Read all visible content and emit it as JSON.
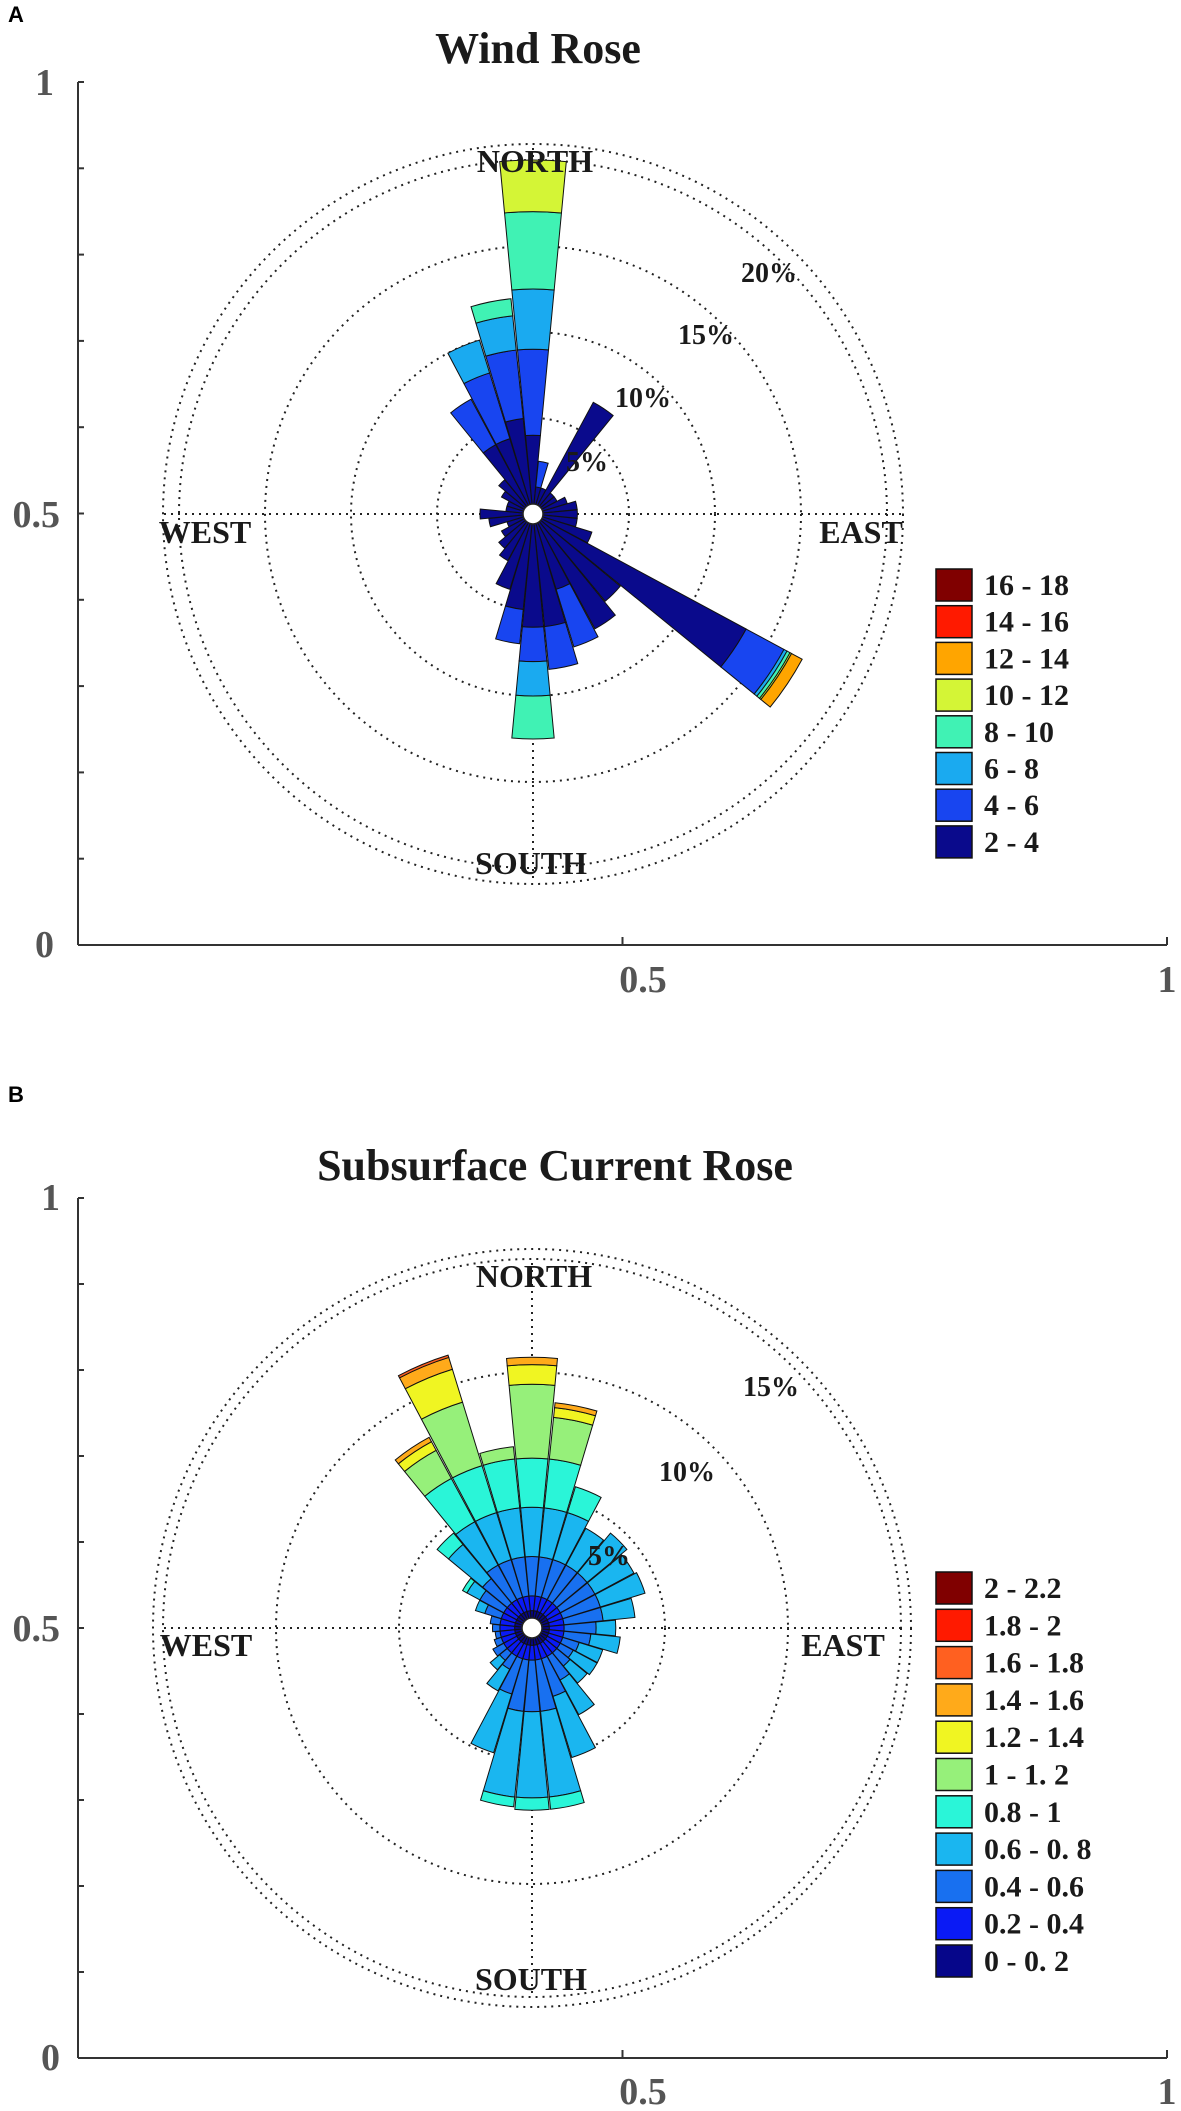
{
  "chart_data": [
    {
      "panel": "A",
      "type": "polar-bar",
      "title": "Wind Rose",
      "xticks": [
        "0.5",
        "1"
      ],
      "yticks": [
        "1",
        "0.5",
        "0"
      ],
      "compass": [
        "NORTH",
        "EAST",
        "SOUTH",
        "WEST"
      ],
      "rings": [
        5,
        10,
        15,
        20
      ],
      "ring_labels": [
        "5%",
        "10%",
        "15%",
        "20%"
      ],
      "legend_title": "",
      "legend": [
        {
          "label": "16 - 18",
          "color": "#800000"
        },
        {
          "label": "14 - 16",
          "color": "#ff1a00"
        },
        {
          "label": "12 - 14",
          "color": "#ffa500"
        },
        {
          "label": "10 - 12",
          "color": "#d4f536"
        },
        {
          "label": "8 - 10",
          "color": "#40f2b4"
        },
        {
          "label": "6 - 8",
          "color": "#1aaaf0"
        },
        {
          "label": "4 - 6",
          "color": "#1845f0"
        },
        {
          "label": "2 - 4",
          "color": "#0a0a8c"
        }
      ],
      "directions": [
        {
          "dir": 0,
          "cumulative": [
            4,
            9,
            12.5,
            17,
            20
          ]
        },
        {
          "dir": 11.25,
          "cumulative": [
            1,
            2.5
          ]
        },
        {
          "dir": 22.5,
          "cumulative": [
            1
          ]
        },
        {
          "dir": 33.75,
          "cumulative": [
            6.8
          ]
        },
        {
          "dir": 45,
          "cumulative": [
            1
          ]
        },
        {
          "dir": 56.25,
          "cumulative": [
            1
          ]
        },
        {
          "dir": 67.5,
          "cumulative": [
            1.5
          ]
        },
        {
          "dir": 78.75,
          "cumulative": [
            2
          ]
        },
        {
          "dir": 90,
          "cumulative": [
            2
          ]
        },
        {
          "dir": 101.25,
          "cumulative": [
            2
          ]
        },
        {
          "dir": 112.5,
          "cumulative": [
            3
          ]
        },
        {
          "dir": 123.75,
          "cumulative": [
            13.5,
            16,
            16.2,
            16.4,
            16.5,
            17.2
          ]
        },
        {
          "dir": 135,
          "cumulative": [
            6
          ]
        },
        {
          "dir": 146.25,
          "cumulative": [
            7
          ]
        },
        {
          "dir": 157.5,
          "cumulative": [
            4,
            7.5
          ]
        },
        {
          "dir": 168.75,
          "cumulative": [
            6,
            8.5
          ]
        },
        {
          "dir": 180,
          "cumulative": [
            6,
            8,
            10,
            12.5
          ]
        },
        {
          "dir": 191.25,
          "cumulative": [
            5,
            7
          ]
        },
        {
          "dir": 202.5,
          "cumulative": [
            4
          ]
        },
        {
          "dir": 213.75,
          "cumulative": [
            2.5
          ]
        },
        {
          "dir": 225,
          "cumulative": [
            2
          ]
        },
        {
          "dir": 236.25,
          "cumulative": [
            1.5
          ]
        },
        {
          "dir": 247.5,
          "cumulative": [
            1
          ]
        },
        {
          "dir": 258.75,
          "cumulative": [
            2
          ]
        },
        {
          "dir": 270,
          "cumulative": [
            2.5
          ]
        },
        {
          "dir": 281.25,
          "cumulative": [
            1
          ]
        },
        {
          "dir": 292.5,
          "cumulative": [
            1
          ]
        },
        {
          "dir": 303.75,
          "cumulative": [
            1.5
          ]
        },
        {
          "dir": 315,
          "cumulative": [
            2
          ]
        },
        {
          "dir": 326.25,
          "cumulative": [
            4,
            7
          ]
        },
        {
          "dir": 337.5,
          "cumulative": [
            4,
            8,
            10
          ]
        },
        {
          "dir": 348.75,
          "cumulative": [
            5,
            9,
            11,
            12
          ]
        }
      ]
    },
    {
      "panel": "B",
      "type": "polar-bar",
      "title": "Subsurface Current Rose",
      "xticks": [
        "0.5",
        "1"
      ],
      "yticks": [
        "1",
        "0.5",
        "0"
      ],
      "compass": [
        "NORTH",
        "EAST",
        "SOUTH",
        "WEST"
      ],
      "rings": [
        5,
        10,
        15
      ],
      "ring_labels": [
        "5%",
        "10%",
        "15%"
      ],
      "legend_title": "",
      "legend": [
        {
          "label": "2 - 2.2",
          "color": "#800000"
        },
        {
          "label": "1.8 - 2",
          "color": "#ff1a00"
        },
        {
          "label": "1.6 - 1.8",
          "color": "#ff6020"
        },
        {
          "label": "1.4 - 1.6",
          "color": "#ffaa1a"
        },
        {
          "label": "1.2 - 1.4",
          "color": "#f0f522"
        },
        {
          "label": "1 - 1. 2",
          "color": "#96f07a"
        },
        {
          "label": "0.8 - 1",
          "color": "#2af5d8"
        },
        {
          "label": "0.6 - 0. 8",
          "color": "#1ab6f0"
        },
        {
          "label": "0.4 - 0.6",
          "color": "#1870f0"
        },
        {
          "label": "0.2 - 0.4",
          "color": "#0a1af5"
        },
        {
          "label": "0 - 0. 2",
          "color": "#06068a"
        }
      ],
      "directions": [
        {
          "dir": 0,
          "cumulative": [
            0.3,
            0.9,
            2.5,
            4.5,
            6.5,
            9.5,
            10.3,
            10.6
          ]
        },
        {
          "dir": 11.25,
          "cumulative": [
            0.3,
            0.9,
            2.5,
            4.5,
            6.5,
            8.2,
            8.6,
            8.8
          ]
        },
        {
          "dir": 22.5,
          "cumulative": [
            0.3,
            0.9,
            2.5,
            4.5,
            5.6
          ]
        },
        {
          "dir": 33.75,
          "cumulative": [
            0.3,
            0.9,
            2.5,
            4.2
          ]
        },
        {
          "dir": 45,
          "cumulative": [
            0.3,
            0.9,
            2.5,
            4.6
          ]
        },
        {
          "dir": 56.25,
          "cumulative": [
            0.3,
            0.9,
            2.5,
            4.3
          ]
        },
        {
          "dir": 67.5,
          "cumulative": [
            0.3,
            0.9,
            2.5,
            4.4
          ]
        },
        {
          "dir": 78.75,
          "cumulative": [
            0.3,
            0.9,
            2.5,
            3.8
          ]
        },
        {
          "dir": 90,
          "cumulative": [
            0.3,
            0.9,
            2.2,
            3.0
          ]
        },
        {
          "dir": 101.25,
          "cumulative": [
            0.3,
            0.9,
            2.0,
            3.2
          ]
        },
        {
          "dir": 112.5,
          "cumulative": [
            0.3,
            0.9,
            1.6,
            2.6
          ]
        },
        {
          "dir": 123.75,
          "cumulative": [
            0.3,
            0.9,
            1.5,
            2.6
          ]
        },
        {
          "dir": 135,
          "cumulative": [
            0.3,
            0.9,
            1.6,
            2.5
          ]
        },
        {
          "dir": 146.25,
          "cumulative": [
            0.3,
            0.9,
            2.0,
            3.6
          ]
        },
        {
          "dir": 157.5,
          "cumulative": [
            0.3,
            0.9,
            2.5,
            5.1
          ]
        },
        {
          "dir": 168.75,
          "cumulative": [
            0.3,
            0.9,
            3.0,
            6.5,
            7.0
          ]
        },
        {
          "dir": 180,
          "cumulative": [
            0.3,
            0.9,
            3.0,
            6.5,
            7.0
          ]
        },
        {
          "dir": 191.25,
          "cumulative": [
            0.3,
            0.9,
            3.0,
            6.5,
            6.9
          ]
        },
        {
          "dir": 202.5,
          "cumulative": [
            0.3,
            0.9,
            2.4,
            4.9
          ]
        },
        {
          "dir": 213.75,
          "cumulative": [
            0.3,
            0.9,
            1.5,
            2.5
          ]
        },
        {
          "dir": 225,
          "cumulative": [
            0.3,
            0.9,
            1.3,
            1.8
          ]
        },
        {
          "dir": 236.25,
          "cumulative": [
            0.3,
            0.9,
            1.4
          ]
        },
        {
          "dir": 247.5,
          "cumulative": [
            0.3,
            0.9,
            1.2
          ]
        },
        {
          "dir": 258.75,
          "cumulative": [
            0.3,
            0.9,
            1.1
          ]
        },
        {
          "dir": 270,
          "cumulative": [
            0.3,
            0.9,
            1.2
          ]
        },
        {
          "dir": 281.25,
          "cumulative": [
            0.3,
            0.9,
            1.3
          ]
        },
        {
          "dir": 292.5,
          "cumulative": [
            0.3,
            0.9,
            1.6,
            2.0
          ]
        },
        {
          "dir": 303.75,
          "cumulative": [
            0.3,
            0.9,
            2.0,
            2.6,
            2.8
          ]
        },
        {
          "dir": 315,
          "cumulative": [
            0.3,
            0.9,
            2.2,
            4.0,
            4.6
          ]
        },
        {
          "dir": 326.25,
          "cumulative": [
            0.3,
            0.9,
            2.5,
            4.5,
            6.5,
            7.8,
            8.2,
            8.4
          ]
        },
        {
          "dir": 337.5,
          "cumulative": [
            0.3,
            0.9,
            2.5,
            4.5,
            6.5,
            9.2,
            10.6,
            11.1,
            11.2
          ]
        },
        {
          "dir": 348.75,
          "cumulative": [
            0.3,
            0.9,
            2.5,
            4.5,
            6.5,
            7.0
          ]
        }
      ]
    }
  ]
}
